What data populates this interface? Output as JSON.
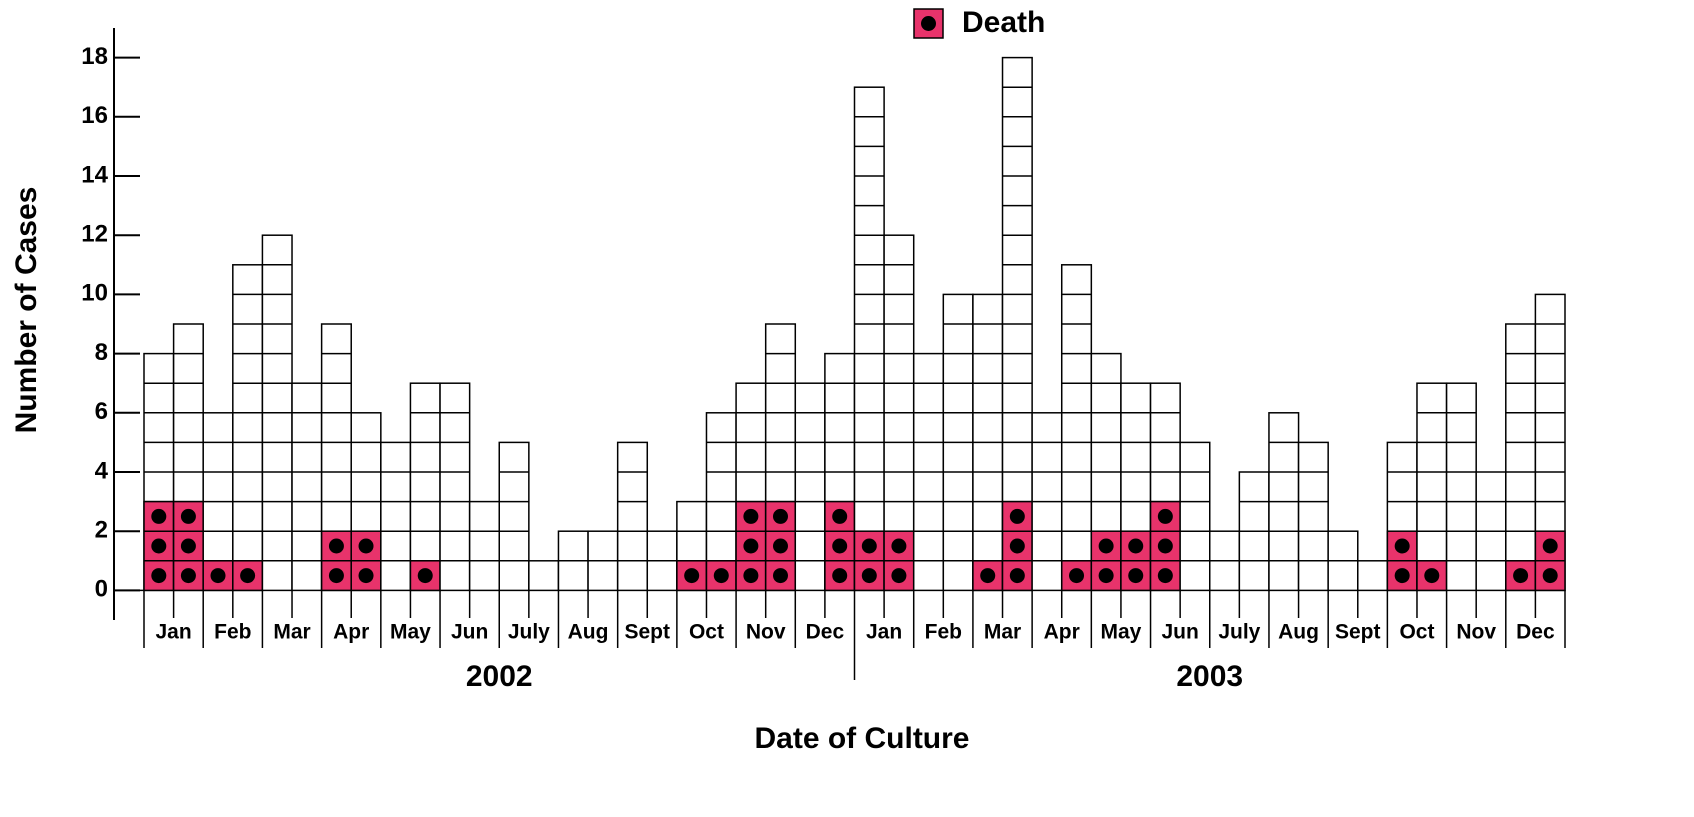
{
  "chart_data": {
    "type": "epicurve",
    "y_label": "Number of Cases",
    "x_label": "Date of Culture",
    "months": [
      "Jan",
      "Feb",
      "Mar",
      "Apr",
      "May",
      "Jun",
      "July",
      "Aug",
      "Sept",
      "Oct",
      "Nov",
      "Dec",
      "Jan",
      "Feb",
      "Mar",
      "Apr",
      "May",
      "Jun",
      "July",
      "Aug",
      "Sept",
      "Oct",
      "Nov",
      "Dec"
    ],
    "years": [
      "2002",
      "2003"
    ],
    "values": [
      8,
      9,
      6,
      11,
      12,
      7,
      9,
      6,
      5,
      7,
      7,
      3,
      5,
      1,
      2,
      2,
      5,
      2,
      3,
      6,
      7,
      9,
      7,
      8,
      17,
      12,
      8,
      10,
      10,
      18,
      6,
      11,
      8,
      7,
      7,
      5,
      2,
      4,
      6,
      5,
      2,
      1,
      5,
      7,
      7,
      4,
      9,
      10
    ],
    "color": "#ffffff",
    "series": [
      {
        "name": "Death",
        "color": "#e8336b",
        "values": [
          3,
          3,
          1,
          1,
          0,
          0,
          2,
          2,
          0,
          1,
          0,
          0,
          0,
          0,
          0,
          0,
          0,
          0,
          1,
          1,
          3,
          3,
          0,
          3,
          2,
          2,
          0,
          0,
          1,
          3,
          0,
          1,
          2,
          2,
          3,
          0,
          0,
          0,
          0,
          0,
          0,
          0,
          2,
          1,
          0,
          0,
          1,
          2
        ]
      }
    ],
    "ylim": [
      -1,
      19
    ],
    "yticks": [
      0,
      2,
      4,
      6,
      8,
      10,
      12,
      14,
      16,
      18
    ]
  }
}
